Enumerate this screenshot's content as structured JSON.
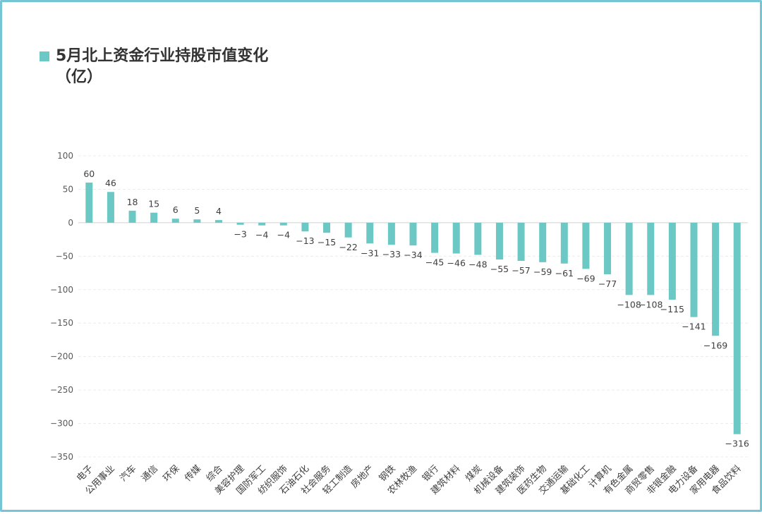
{
  "chart_data": {
    "type": "bar",
    "title": "5月北上资金行业持股市值变化\n（亿）",
    "xlabel": "",
    "ylabel": "",
    "ylim": [
      -350,
      100
    ],
    "yticks": [
      100,
      50,
      0,
      -50,
      -100,
      -150,
      -200,
      -250,
      -300,
      -350
    ],
    "grid": true,
    "legend": "top-left",
    "bar_color": "#6cc8c4",
    "categories": [
      "电子",
      "公用事业",
      "汽车",
      "通信",
      "环保",
      "传媒",
      "综合",
      "美容护理",
      "国防军工",
      "纺织服饰",
      "石油石化",
      "社会服务",
      "轻工制造",
      "房地产",
      "钢铁",
      "农林牧渔",
      "银行",
      "建筑材料",
      "煤炭",
      "机械设备",
      "建筑装饰",
      "医药生物",
      "交通运输",
      "基础化工",
      "计算机",
      "有色金属",
      "商贸零售",
      "非银金融",
      "电力设备",
      "家用电器",
      "食品饮料"
    ],
    "values": [
      60,
      46,
      18,
      15,
      6,
      5,
      4,
      -3,
      -4,
      -4,
      -13,
      -15,
      -22,
      -31,
      -33,
      -34,
      -45,
      -46,
      -48,
      -55,
      -57,
      -59,
      -61,
      -69,
      -77,
      -108,
      -108,
      -115,
      -141,
      -169,
      -316
    ]
  }
}
